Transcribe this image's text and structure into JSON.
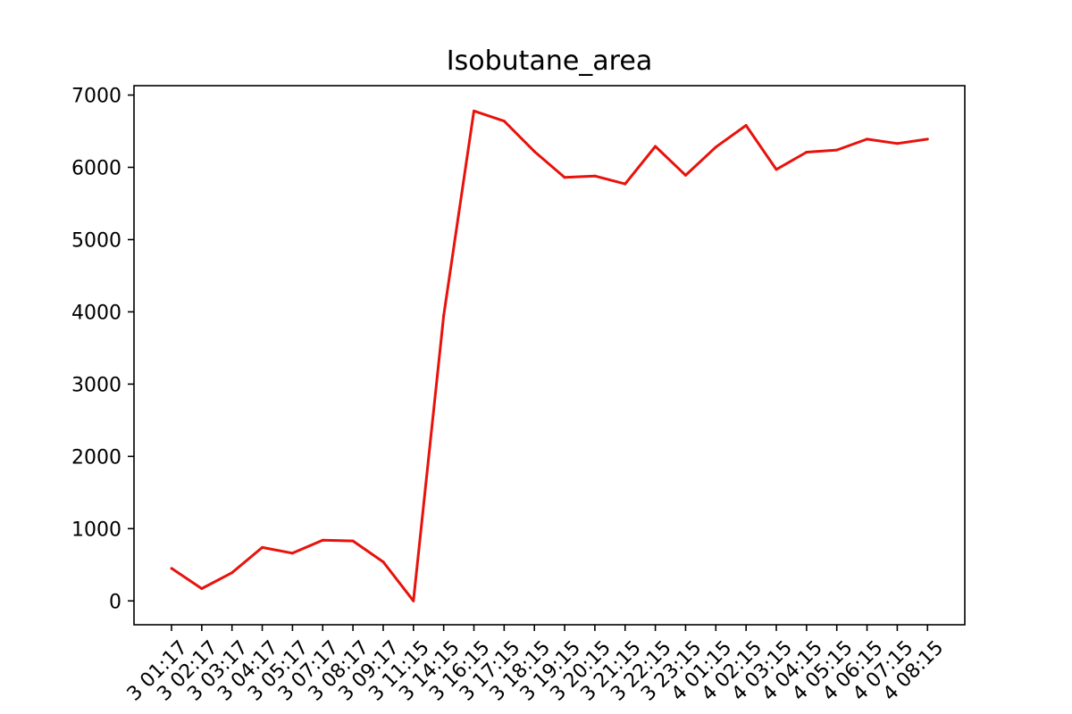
{
  "chart_data": {
    "type": "line",
    "title": "Isobutane_area",
    "xlabel": "",
    "ylabel": "",
    "grid": false,
    "x_tick_labels": [
      "3 01:17",
      "3 02:17",
      "3 03:17",
      "3 04:17",
      "3 05:17",
      "3 07:17",
      "3 08:17",
      "3 09:17",
      "3 11:15",
      "3 14:15",
      "3 16:15",
      "3 17:15",
      "3 18:15",
      "3 19:15",
      "3 20:15",
      "3 21:15",
      "3 22:15",
      "3 23:15",
      "4 01:15",
      "4 02:15",
      "4 03:15",
      "4 04:15",
      "4 05:15",
      "4 06:15",
      "4 07:15",
      "4 08:15"
    ],
    "ylim": [
      -330,
      7130
    ],
    "yticks": [
      0,
      1000,
      2000,
      3000,
      4000,
      5000,
      6000,
      7000
    ],
    "series": [
      {
        "color": "#e8120c",
        "values": [
          450,
          170,
          390,
          740,
          660,
          840,
          830,
          540,
          0,
          3950,
          6780,
          6640,
          6220,
          5860,
          5880,
          5770,
          6290,
          5890,
          6280,
          6580,
          5970,
          6210,
          6240,
          6390,
          6330,
          6390
        ]
      }
    ]
  }
}
